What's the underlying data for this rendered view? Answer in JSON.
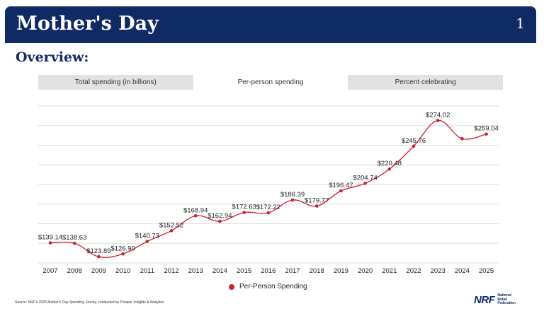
{
  "header": {
    "title": "Mother's Day",
    "page_number": "1"
  },
  "subheading": "Overview:",
  "tabs": [
    {
      "label": "Total spending (in billions)",
      "active": false
    },
    {
      "label": "Per-person spending",
      "active": true
    },
    {
      "label": "Percent celebrating",
      "active": false
    }
  ],
  "chart_data": {
    "type": "line",
    "title": "",
    "xlabel": "",
    "ylabel": "",
    "x": [
      "2007",
      "2008",
      "2009",
      "2010",
      "2011",
      "2012",
      "2013",
      "2014",
      "2015",
      "2016",
      "2017",
      "2018",
      "2019",
      "2020",
      "2021",
      "2022",
      "2023",
      "2024",
      "2025"
    ],
    "series": [
      {
        "name": "Per-Person Spending",
        "color": "#c8202c",
        "values": [
          139.14,
          138.63,
          123.89,
          126.9,
          140.73,
          152.52,
          168.94,
          162.94,
          172.63,
          172.22,
          186.39,
          179.77,
          196.47,
          204.74,
          220.48,
          245.76,
          274.02,
          254.0,
          259.04
        ],
        "labels": [
          "$139.14",
          "$138.63",
          "$123.89",
          "$126.90",
          "$140.73",
          "$152.52",
          "$168.94",
          "$162.94",
          "$172.63",
          "$172.22",
          "$186.39",
          "$179.77",
          "$196.47",
          "$204.74",
          "$220.48",
          "$245.76",
          "$274.02",
          "",
          "$259.04"
        ]
      }
    ],
    "ylim": [
      117,
      290
    ],
    "grid": true,
    "legend": "bottom-center"
  },
  "legend": {
    "label": "Per-Person Spending"
  },
  "source": "Source: NRF's 2025 Mother's Day Spending Survey, conducted by Prosper Insights & Analytics",
  "logo": {
    "mark": "NRF",
    "line1": "National",
    "line2": "Retail",
    "line3": "Federation"
  }
}
